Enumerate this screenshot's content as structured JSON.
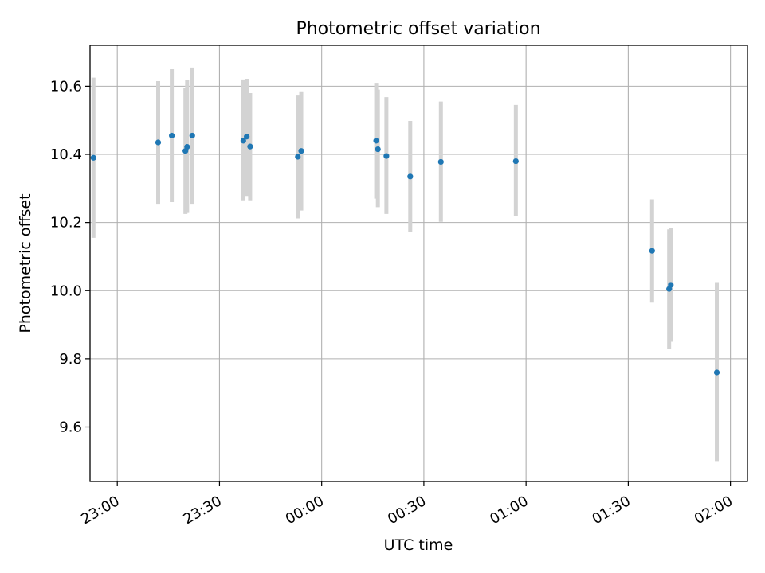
{
  "chart_data": {
    "type": "scatter",
    "title": "Photometric offset variation",
    "xlabel": "UTC time",
    "ylabel": "Photometric offset",
    "grid": true,
    "x_axis_kind": "time",
    "xlim": [
      "22:52",
      "02:05"
    ],
    "ylim": [
      9.44,
      10.72
    ],
    "x_ticks": [
      "23:00",
      "23:30",
      "00:00",
      "00:30",
      "01:00",
      "01:30",
      "02:00"
    ],
    "y_ticks": [
      9.6,
      9.8,
      10.0,
      10.2,
      10.4,
      10.6
    ],
    "y_tick_labels": [
      "9.6",
      "9.8",
      "10.0",
      "10.2",
      "10.4",
      "10.6"
    ],
    "colors": {
      "marker": "#1f77b4",
      "errorbar": "#d3d3d3",
      "grid": "#b0b0b0"
    },
    "points": [
      {
        "x": "22:53",
        "y": 10.39,
        "ylow": 10.155,
        "yhigh": 10.625
      },
      {
        "x": "23:12",
        "y": 10.435,
        "ylow": 10.255,
        "yhigh": 10.615
      },
      {
        "x": "23:16",
        "y": 10.455,
        "ylow": 10.26,
        "yhigh": 10.65
      },
      {
        "x": "23:20",
        "y": 10.41,
        "ylow": 10.225,
        "yhigh": 10.595
      },
      {
        "x": "23:20.5",
        "y": 10.422,
        "ylow": 10.228,
        "yhigh": 10.618
      },
      {
        "x": "23:22",
        "y": 10.455,
        "ylow": 10.255,
        "yhigh": 10.655
      },
      {
        "x": "23:37",
        "y": 10.44,
        "ylow": 10.265,
        "yhigh": 10.62
      },
      {
        "x": "23:38",
        "y": 10.452,
        "ylow": 10.278,
        "yhigh": 10.622
      },
      {
        "x": "23:39",
        "y": 10.423,
        "ylow": 10.265,
        "yhigh": 10.58
      },
      {
        "x": "23:53",
        "y": 10.393,
        "ylow": 10.212,
        "yhigh": 10.575
      },
      {
        "x": "23:54",
        "y": 10.41,
        "ylow": 10.235,
        "yhigh": 10.585
      },
      {
        "x": "00:16",
        "y": 10.44,
        "ylow": 10.27,
        "yhigh": 10.61
      },
      {
        "x": "00:16.5",
        "y": 10.415,
        "ylow": 10.245,
        "yhigh": 10.59
      },
      {
        "x": "00:19",
        "y": 10.395,
        "ylow": 10.225,
        "yhigh": 10.568
      },
      {
        "x": "00:26",
        "y": 10.335,
        "ylow": 10.172,
        "yhigh": 10.498
      },
      {
        "x": "00:35",
        "y": 10.378,
        "ylow": 10.202,
        "yhigh": 10.555
      },
      {
        "x": "00:57",
        "y": 10.38,
        "ylow": 10.218,
        "yhigh": 10.545
      },
      {
        "x": "01:37",
        "y": 10.117,
        "ylow": 9.965,
        "yhigh": 10.268
      },
      {
        "x": "01:42",
        "y": 10.005,
        "ylow": 9.828,
        "yhigh": 10.18
      },
      {
        "x": "01:42.5",
        "y": 10.017,
        "ylow": 9.85,
        "yhigh": 10.185
      },
      {
        "x": "01:56",
        "y": 9.76,
        "ylow": 9.5,
        "yhigh": 10.025
      }
    ]
  }
}
